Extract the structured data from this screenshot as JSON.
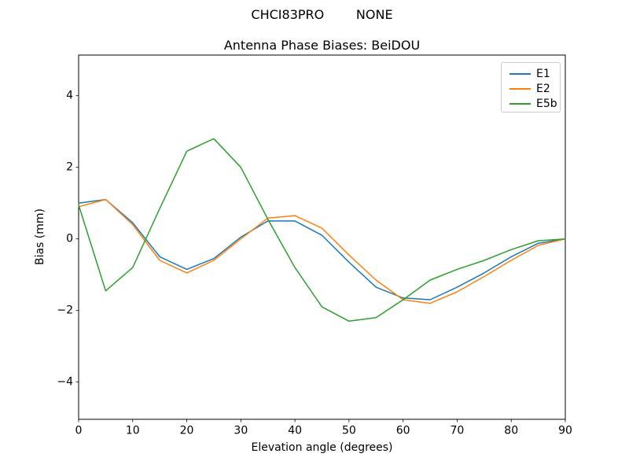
{
  "figure": {
    "suptitle": "CHCI83PRO        NONE",
    "background": "#ffffff",
    "text_color": "#000000"
  },
  "chart_data": {
    "type": "line",
    "title": "Antenna Phase Biases: BeiDOU",
    "xlabel": "Elevation angle (degrees)",
    "ylabel": "Bias (mm)",
    "xlim": [
      0,
      90
    ],
    "ylim": [
      -5,
      5
    ],
    "x_ticks": [
      0,
      10,
      20,
      30,
      40,
      50,
      60,
      70,
      80,
      90
    ],
    "y_ticks": [
      -4,
      -2,
      0,
      2,
      4
    ],
    "grid": false,
    "legend": {
      "position": "upper right",
      "entries": [
        "E1",
        "E2",
        "E5b"
      ]
    },
    "x": [
      0,
      5,
      10,
      15,
      20,
      25,
      30,
      35,
      40,
      45,
      50,
      55,
      60,
      65,
      70,
      75,
      80,
      85,
      90
    ],
    "series": [
      {
        "name": "E1",
        "color": "#1f77b4",
        "values": [
          1.0,
          1.1,
          0.45,
          -0.5,
          -0.85,
          -0.55,
          0.05,
          0.5,
          0.5,
          0.1,
          -0.65,
          -1.35,
          -1.65,
          -1.7,
          -1.35,
          -0.95,
          -0.5,
          -0.12,
          0.0
        ]
      },
      {
        "name": "E2",
        "color": "#ff7f0e",
        "values": [
          0.9,
          1.1,
          0.4,
          -0.6,
          -0.95,
          -0.6,
          0.0,
          0.58,
          0.65,
          0.3,
          -0.45,
          -1.15,
          -1.7,
          -1.8,
          -1.48,
          -1.05,
          -0.6,
          -0.18,
          0.0
        ]
      },
      {
        "name": "E5b",
        "color": "#2ca02c",
        "values": [
          0.95,
          -1.45,
          -0.8,
          0.85,
          2.45,
          2.8,
          2.0,
          0.55,
          -0.8,
          -1.9,
          -2.3,
          -2.2,
          -1.7,
          -1.15,
          -0.85,
          -0.6,
          -0.3,
          -0.05,
          0.0
        ]
      }
    ]
  }
}
